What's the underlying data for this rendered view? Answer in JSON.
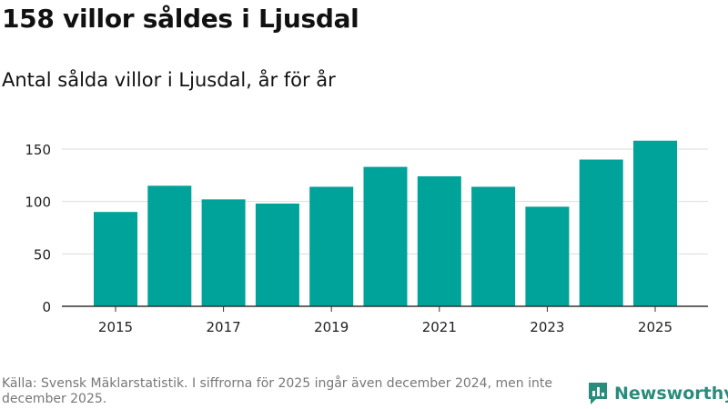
{
  "header": {
    "title": "158 villor såldes i Ljusdal",
    "subtitle": "Antal sålda villor i Ljusdal, år för år"
  },
  "footer": {
    "source": "Källa: Svensk Mäklarstatistik. I siffrorna för 2025 ingår även december 2024, men inte december 2025.",
    "brand": "Newsworthy"
  },
  "colors": {
    "bar": "#00a399",
    "grid": "#dddddd",
    "axis": "#333333",
    "brand": "#2a8c7c"
  },
  "chart_data": {
    "type": "bar",
    "title": "158 villor såldes i Ljusdal",
    "subtitle": "Antal sålda villor i Ljusdal, år för år",
    "xlabel": "",
    "ylabel": "",
    "categories": [
      "2015",
      "2016",
      "2017",
      "2018",
      "2019",
      "2020",
      "2021",
      "2022",
      "2023",
      "2024",
      "2025"
    ],
    "values": [
      90,
      115,
      102,
      98,
      114,
      133,
      124,
      114,
      95,
      140,
      158
    ],
    "xtick_labels": [
      "2015",
      "2017",
      "2019",
      "2021",
      "2023",
      "2025"
    ],
    "yticks": [
      0,
      50,
      100,
      150
    ],
    "ylim": [
      0,
      165
    ],
    "grid": true,
    "legend": "none"
  }
}
